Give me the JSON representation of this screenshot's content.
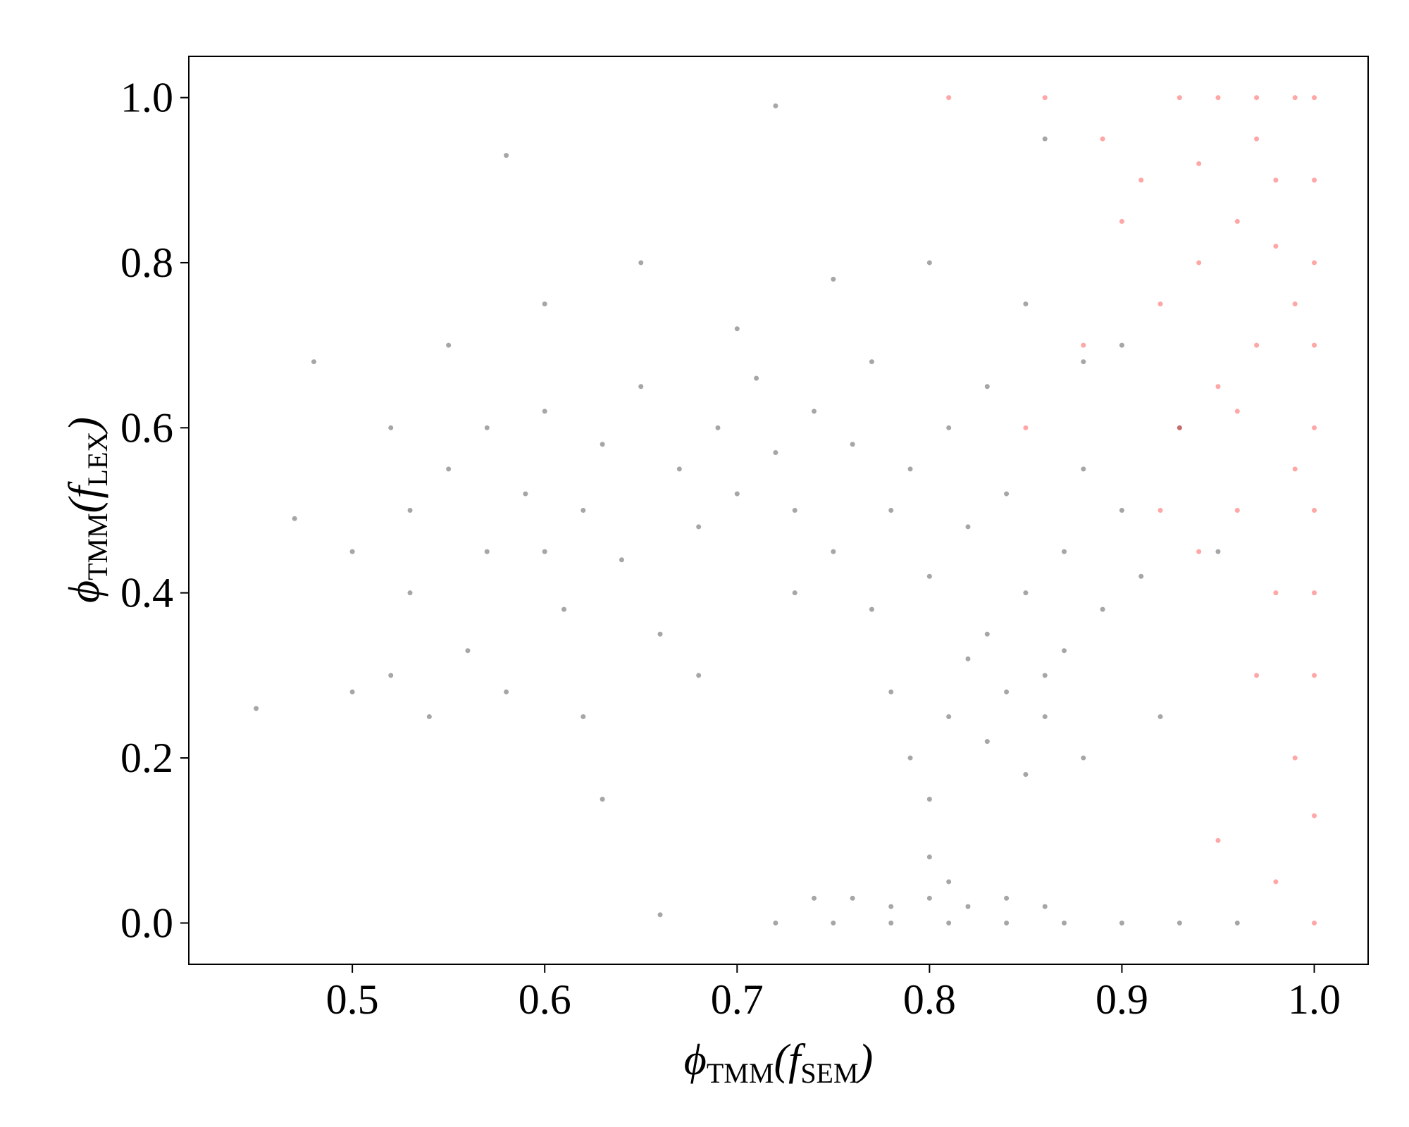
{
  "chart_data": {
    "type": "scatter",
    "xlabel": [
      "ϕ",
      "TMM",
      "(f",
      "SEM",
      ")"
    ],
    "ylabel": [
      "ϕ",
      "TMM",
      "(f",
      "LEX",
      ")"
    ],
    "xlim": [
      0.415,
      1.028
    ],
    "ylim": [
      -0.05,
      1.05
    ],
    "xticks": [
      0.5,
      0.6,
      0.7,
      0.8,
      0.9,
      {
        "value": 1,
        "label": "1.0"
      }
    ],
    "yticks": [
      {
        "value": 0,
        "label": "0.0"
      },
      0.2,
      0.4,
      0.6,
      0.8,
      {
        "value": 1,
        "label": "1.0"
      }
    ],
    "series": [
      {
        "color": "#000000",
        "x": [
          0.45,
          0.47,
          0.48,
          0.5,
          0.52,
          0.53,
          0.54,
          0.55,
          0.56,
          0.57,
          0.58,
          0.59,
          0.6,
          0.61,
          0.62,
          0.63,
          0.64,
          0.65,
          0.66,
          0.67,
          0.68,
          0.69,
          0.7,
          0.71,
          0.72,
          0.73,
          0.74,
          0.75,
          0.76,
          0.77,
          0.78,
          0.79,
          0.8,
          0.81,
          0.82,
          0.83,
          0.84,
          0.85,
          0.86,
          0.87,
          0.88,
          0.89,
          0.9,
          0.91,
          0.78,
          0.79,
          0.8,
          0.81,
          0.82,
          0.83,
          0.84,
          0.85,
          0.86,
          0.87,
          0.88,
          0.8,
          0.81,
          0.76,
          0.78,
          0.8,
          0.82,
          0.84,
          0.86,
          0.74,
          0.72,
          0.75,
          0.78,
          0.81,
          0.84,
          0.87,
          0.9,
          0.93,
          0.96,
          0.6,
          0.65,
          0.7,
          0.75,
          0.8,
          0.85,
          0.9,
          0.55,
          0.52,
          0.5,
          0.58,
          0.72,
          0.86,
          0.63,
          0.66,
          0.92,
          0.93,
          0.95,
          0.62,
          0.68,
          0.73,
          0.77,
          0.83,
          0.88,
          0.57,
          0.53,
          0.6
        ],
        "values": [
          0.26,
          0.49,
          0.68,
          0.28,
          0.3,
          0.4,
          0.25,
          0.55,
          0.33,
          0.45,
          0.28,
          0.52,
          0.62,
          0.38,
          0.5,
          0.58,
          0.44,
          0.65,
          0.35,
          0.55,
          0.48,
          0.6,
          0.52,
          0.66,
          0.57,
          0.5,
          0.62,
          0.45,
          0.58,
          0.68,
          0.5,
          0.55,
          0.42,
          0.6,
          0.48,
          0.35,
          0.52,
          0.4,
          0.3,
          0.45,
          0.55,
          0.38,
          0.5,
          0.42,
          0.28,
          0.2,
          0.15,
          0.25,
          0.32,
          0.22,
          0.28,
          0.18,
          0.25,
          0.33,
          0.2,
          0.08,
          0.05,
          0.03,
          0.02,
          0.03,
          0.02,
          0.03,
          0.02,
          0.03,
          0,
          0,
          0,
          0,
          0,
          0,
          0,
          0,
          0,
          0.75,
          0.8,
          0.72,
          0.78,
          0.8,
          0.75,
          0.7,
          0.7,
          0.6,
          0.45,
          0.93,
          0.99,
          0.95,
          0.15,
          0.01,
          0.25,
          0.6,
          0.45,
          0.25,
          0.3,
          0.4,
          0.38,
          0.65,
          0.68,
          0.6,
          0.5,
          0.45
        ]
      },
      {
        "color": "#ff0000",
        "x": [
          0.95,
          0.93,
          0.97,
          0.99,
          1,
          1,
          1,
          1,
          1,
          1,
          1,
          1,
          1,
          1,
          0.98,
          0.96,
          0.94,
          0.92,
          0.9,
          0.97,
          0.95,
          0.93,
          0.99,
          0.96,
          0.94,
          0.98,
          0.97,
          0.99,
          0.95,
          0.91,
          0.88,
          0.85,
          0.92,
          0.97,
          0.99,
          0.96,
          0.98,
          0.86,
          0.81,
          0.89,
          0.94,
          0.98
        ],
        "values": [
          1,
          1,
          1,
          1,
          1,
          0.9,
          0.8,
          0.7,
          0.6,
          0.5,
          0.4,
          0.3,
          0.13,
          0,
          0.9,
          0.85,
          0.8,
          0.75,
          0.85,
          0.7,
          0.65,
          0.6,
          0.55,
          0.5,
          0.45,
          0.4,
          0.3,
          0.2,
          0.1,
          0.9,
          0.7,
          0.6,
          0.5,
          0.95,
          0.75,
          0.62,
          0.05,
          1,
          1,
          0.95,
          0.92,
          0.82
        ]
      }
    ]
  }
}
